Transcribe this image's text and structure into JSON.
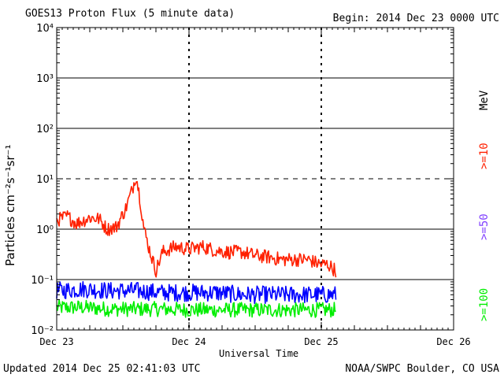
{
  "header": {
    "title": "GOES13 Proton Flux (5 minute data)",
    "begin": "Begin: 2014 Dec 23 0000 UTC"
  },
  "footer": {
    "updated": "Updated 2014 Dec 25 02:41:03 UTC",
    "credit": "NOAA/SWPC Boulder, CO USA"
  },
  "colors": {
    "ge10": "#ff2000",
    "ge50": "#0000ff",
    "ge100": "#00ee00",
    "ge50_label": "#8040ff",
    "axis": "#000000"
  },
  "chart_data": {
    "type": "line",
    "title": "GOES13 Proton Flux (5 minute data)",
    "xlabel": "Universal Time",
    "ylabel": "Particles cm⁻²s⁻¹sr⁻¹",
    "yscale": "log",
    "xlim_days": [
      0,
      3
    ],
    "ylim": [
      0.01,
      10000
    ],
    "x_ticks": [
      {
        "day": 0,
        "label": "Dec 23"
      },
      {
        "day": 1,
        "label": "Dec 24"
      },
      {
        "day": 2,
        "label": "Dec 25"
      },
      {
        "day": 3,
        "label": "Dec 26"
      }
    ],
    "y_ticks": [
      {
        "exp": 4,
        "label": "10⁴"
      },
      {
        "exp": 3,
        "label": "10³"
      },
      {
        "exp": 2,
        "label": "10²"
      },
      {
        "exp": 1,
        "label": "10¹"
      },
      {
        "exp": 0,
        "label": "10⁰"
      },
      {
        "exp": -1,
        "label": "10⁻¹"
      },
      {
        "exp": -2,
        "label": "10⁻²"
      }
    ],
    "solid_grid_exps": [
      3,
      2,
      0,
      -1
    ],
    "dashed_grid_exps": [
      1
    ],
    "unit_label": "MeV",
    "series": [
      {
        "name": ">=10",
        "color": "#ff2000",
        "points": [
          [
            0.0,
            1.5
          ],
          [
            0.08,
            1.8
          ],
          [
            0.15,
            1.3
          ],
          [
            0.25,
            1.7
          ],
          [
            0.32,
            1.6
          ],
          [
            0.38,
            1.0
          ],
          [
            0.45,
            1.1
          ],
          [
            0.52,
            2.5
          ],
          [
            0.57,
            6.0
          ],
          [
            0.6,
            12.0
          ],
          [
            0.63,
            4.0
          ],
          [
            0.66,
            1.0
          ],
          [
            0.7,
            0.4
          ],
          [
            0.75,
            0.15
          ],
          [
            0.8,
            0.35
          ],
          [
            0.9,
            0.45
          ],
          [
            1.0,
            0.4
          ],
          [
            1.1,
            0.45
          ],
          [
            1.2,
            0.38
          ],
          [
            1.3,
            0.35
          ],
          [
            1.4,
            0.35
          ],
          [
            1.5,
            0.3
          ],
          [
            1.6,
            0.28
          ],
          [
            1.7,
            0.25
          ],
          [
            1.8,
            0.25
          ],
          [
            1.9,
            0.25
          ],
          [
            1.95,
            0.22
          ],
          [
            2.0,
            0.2
          ],
          [
            2.05,
            0.2
          ],
          [
            2.11,
            0.15
          ]
        ]
      },
      {
        "name": ">=50",
        "color": "#0000ff",
        "points": [
          [
            0.0,
            0.06
          ],
          [
            0.2,
            0.065
          ],
          [
            0.4,
            0.06
          ],
          [
            0.6,
            0.06
          ],
          [
            0.8,
            0.055
          ],
          [
            1.0,
            0.055
          ],
          [
            1.2,
            0.055
          ],
          [
            1.4,
            0.05
          ],
          [
            1.6,
            0.05
          ],
          [
            1.8,
            0.05
          ],
          [
            2.0,
            0.05
          ],
          [
            2.11,
            0.05
          ]
        ]
      },
      {
        "name": ">=100",
        "color": "#00ee00",
        "points": [
          [
            0.0,
            0.028
          ],
          [
            0.2,
            0.028
          ],
          [
            0.4,
            0.026
          ],
          [
            0.6,
            0.026
          ],
          [
            0.8,
            0.026
          ],
          [
            1.0,
            0.025
          ],
          [
            1.2,
            0.025
          ],
          [
            1.4,
            0.025
          ],
          [
            1.6,
            0.025
          ],
          [
            1.8,
            0.025
          ],
          [
            2.0,
            0.025
          ],
          [
            2.11,
            0.025
          ]
        ]
      }
    ]
  }
}
